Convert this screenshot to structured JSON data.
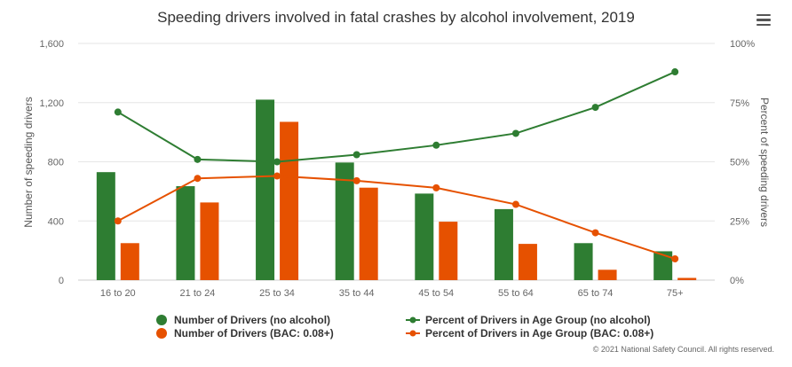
{
  "chart_data": {
    "type": "bar+line",
    "title": "Speeding drivers involved in fatal crashes by alcohol involvement, 2019",
    "categories": [
      "16 to 20",
      "21 to 24",
      "25 to 34",
      "35 to 44",
      "45 to 54",
      "55 to 64",
      "65 to 74",
      "75+"
    ],
    "y_left": {
      "label": "Number of speeding drivers",
      "ylim": [
        0,
        1600
      ],
      "ticks": [
        "0",
        "400",
        "800",
        "1,200",
        "1,600"
      ]
    },
    "y_right": {
      "label": "Percent of speeding drivers",
      "ylim": [
        0,
        100
      ],
      "ticks": [
        "0%",
        "25%",
        "50%",
        "75%",
        "100%"
      ]
    },
    "grid": true,
    "legend_position": "bottom",
    "bar_series": [
      {
        "name": "Number of Drivers (no alcohol)",
        "color": "#2e7d32",
        "values": [
          730,
          635,
          1220,
          795,
          585,
          480,
          250,
          195
        ]
      },
      {
        "name": "Number of Drivers (BAC: 0.08+)",
        "color": "#e65100",
        "values": [
          250,
          525,
          1070,
          625,
          395,
          245,
          70,
          15
        ]
      }
    ],
    "line_series": [
      {
        "name": "Percent of Drivers in Age Group (no alcohol)",
        "color": "#2e7d32",
        "values": [
          71,
          51,
          50,
          53,
          57,
          62,
          73,
          88
        ]
      },
      {
        "name": "Percent of Drivers in Age Group (BAC: 0.08+)",
        "color": "#e65100",
        "values": [
          25,
          43,
          44,
          42,
          39,
          32,
          20,
          9
        ]
      }
    ]
  },
  "credit": "© 2021 National Safety Council. All rights reserved.",
  "menu": {
    "icon": "hamburger-menu-icon"
  }
}
